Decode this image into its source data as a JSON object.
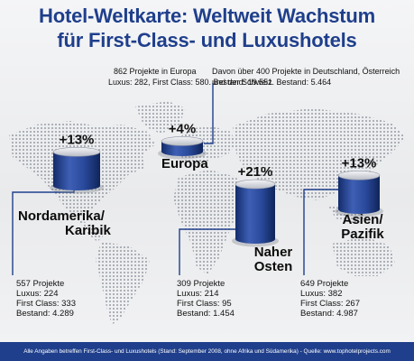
{
  "title": {
    "line1": "Hotel-Weltkarte: Weltweit Wachstum",
    "line2": "für First-Class- und Luxushotels"
  },
  "europe_note": {
    "left_line1": "862 Projekte in Europa",
    "left_line2": "Luxus: 282, First Class: 580. Bestand: 19.551",
    "right_line1": "Davon über 400 Projekte in Deutschland, Österreich",
    "right_line2": "und der Schweiz. Bestand: 5.464"
  },
  "footer": "Alle Angaben betreffen First-Class- und Luxushotels (Stand: September 2008, ohne Afrika und Südamerika) - Quelle: www.tophotelprojects.com",
  "colors": {
    "bar": "#1f3f8c",
    "bar_light": "#5d7bc8",
    "title": "#1f3f8c",
    "map_dots": "#9a9fa8"
  },
  "chart_data": {
    "type": "bar",
    "title": "Hotel-Weltkarte: Weltweit Wachstum für First-Class- und Luxushotels",
    "categories": [
      "Nordamerika/Karibik",
      "Europa",
      "Naher Osten",
      "Asien/Pazifik"
    ],
    "series": [
      {
        "name": "Wachstum",
        "values": [
          13,
          4,
          21,
          13
        ],
        "labels": [
          "+13%",
          "+4%",
          "+21%",
          "+13%"
        ]
      }
    ],
    "regions": [
      {
        "id": "nordamerika",
        "name_line1": "Nordamerika/",
        "name_line2": "Karibik",
        "growth": 13,
        "growth_label": "+13%",
        "projects": "557 Projekte",
        "luxus": "Luxus: 224",
        "first_class": "First Class: 333",
        "bestand": "Bestand: 4.289"
      },
      {
        "id": "europa",
        "name_line1": "Europa",
        "name_line2": "",
        "growth": 4,
        "growth_label": "+4%",
        "projects": "862 Projekte in Europa",
        "luxus": "Luxus: 282",
        "first_class": "First Class: 580",
        "bestand": "Bestand: 19.551"
      },
      {
        "id": "naher-osten",
        "name_line1": "Naher",
        "name_line2": "Osten",
        "growth": 21,
        "growth_label": "+21%",
        "projects": "309 Projekte",
        "luxus": "Luxus: 214",
        "first_class": "First Class: 95",
        "bestand": "Bestand: 1.454"
      },
      {
        "id": "asien",
        "name_line1": "Asien/",
        "name_line2": "Pazifik",
        "growth": 13,
        "growth_label": "+13%",
        "projects": "649 Projekte",
        "luxus": "Luxus: 382",
        "first_class": "First Class: 267",
        "bestand": "Bestand: 4.987"
      }
    ]
  }
}
